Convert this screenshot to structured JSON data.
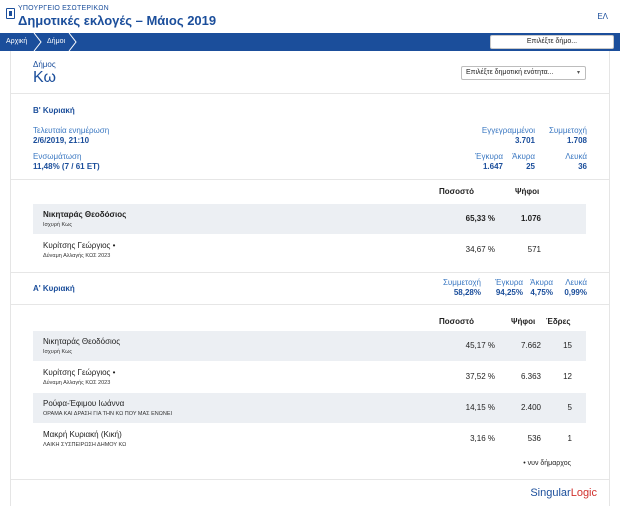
{
  "header": {
    "ministry": "ΥΠΟΥΡΓΕΙΟ ΕΣΩΤΕΡΙΚΩΝ",
    "title": "Δημοτικές εκλογές – Μάιος 2019",
    "lang": "ΕΛ"
  },
  "nav": {
    "crumbs": [
      "Αρχική",
      "Δήμοι"
    ],
    "select_municipality": "Επιλέξτε δήμο..."
  },
  "municipality": {
    "label": "Δήμος",
    "name": "Κω",
    "unit_select": "Επιλέξτε δημοτική ενότητα..."
  },
  "round_b": {
    "title": "Β' Κυριακή",
    "last_update_label": "Τελευταία ενημέρωση",
    "last_update_value": "2/6/2019, 21:10",
    "integration_label": "Ενσωμάτωση",
    "integration_value": "11,48% (7 / 61 ΕΤ)",
    "registered_label": "Εγγεγραμμένοι",
    "registered_value": "3.701",
    "turnout_label": "Συμμετοχή",
    "turnout_value": "1.708",
    "valid_label": "Έγκυρα",
    "valid_value": "1.647",
    "invalid_label": "Άκυρα",
    "invalid_value": "25",
    "blank_label": "Λευκά",
    "blank_value": "36",
    "col_percent": "Ποσοστό",
    "col_votes": "Ψήφοι",
    "candidates": [
      {
        "name": "Νικηταράς Θεοδόσιος",
        "party": "Ισχυρή Κως",
        "percent": "65,33 %",
        "votes": "1.076"
      },
      {
        "name": "Κυρίτσης Γεώργιος •",
        "party": "Δύναμη Αλλαγής ΚΩΣ 2023",
        "percent": "34,67 %",
        "votes": "571"
      }
    ]
  },
  "round_a": {
    "title": "Α' Κυριακή",
    "turnout_label": "Συμμετοχή",
    "turnout_value": "58,28%",
    "valid_label": "Έγκυρα",
    "valid_value": "94,25%",
    "invalid_label": "Άκυρα",
    "invalid_value": "4,75%",
    "blank_label": "Λευκά",
    "blank_value": "0,99%",
    "col_percent": "Ποσοστό",
    "col_votes": "Ψήφοι",
    "col_seats": "Έδρες",
    "candidates": [
      {
        "name": "Νικηταράς Θεοδόσιος",
        "party": "Ισχυρή Κως",
        "percent": "45,17 %",
        "votes": "7.662",
        "seats": "15"
      },
      {
        "name": "Κυρίτσης Γεώργιος •",
        "party": "Δύναμη Αλλαγής ΚΩΣ 2023",
        "percent": "37,52 %",
        "votes": "6.363",
        "seats": "12"
      },
      {
        "name": "Ρούφα-Έφιμου Ιωάννα",
        "party": "ΟΡΑΜΑ ΚΑΙ ΔΡΑΣΗ ΓΙΑ ΤΗΝ ΚΩ ΠΟΥ ΜΑΣ ΕΝΩΝΕΙ",
        "percent": "14,15 %",
        "votes": "2.400",
        "seats": "5"
      },
      {
        "name": "Μακρή Κυριακή (Κική)",
        "party": "ΛΑΙΚΗ ΣΥΣΠΕΙΡΩΣΗ ΔΗΜΟΥ ΚΩ",
        "percent": "3,16 %",
        "votes": "536",
        "seats": "1"
      }
    ],
    "footnote": "• νυν δήμαρχος"
  },
  "brand": {
    "part1": "Singular",
    "part2": "Logic"
  },
  "colors": {
    "primary": "#1b4e9b",
    "link": "#3b78c2",
    "row_shade": "#eceff3",
    "brand_red": "#d0312d"
  }
}
